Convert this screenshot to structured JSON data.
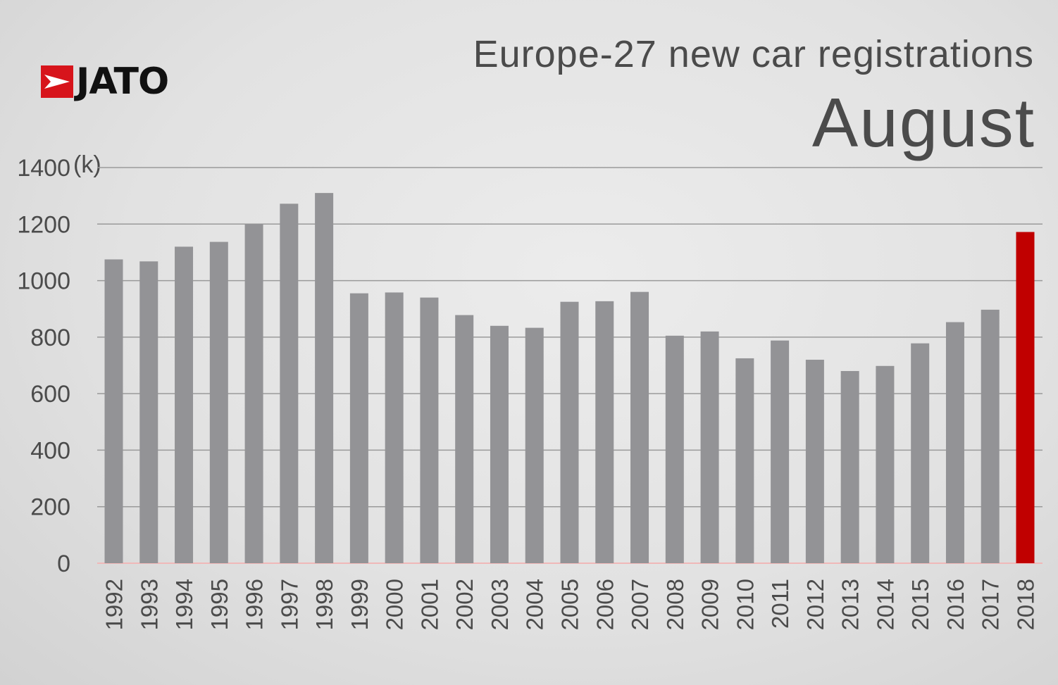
{
  "brand": {
    "logo_text": "JATO",
    "colors": {
      "mark": "#d7141b",
      "text": "#111111"
    }
  },
  "chart_data": {
    "type": "bar",
    "title": "Europe-27 new car registrations",
    "subtitle": "August",
    "ylabel": "(k)",
    "xlabel": "",
    "ylim": [
      0,
      1400
    ],
    "yticks": [
      "0",
      "200",
      "400",
      "600",
      "800",
      "1000",
      "1200",
      "1400"
    ],
    "grid": true,
    "categories": [
      "1992",
      "1993",
      "1994",
      "1995",
      "1996",
      "1997",
      "1998",
      "1999",
      "2000",
      "2001",
      "2002",
      "2003",
      "2004",
      "2005",
      "2006",
      "2007",
      "2008",
      "2009",
      "2010",
      "2011",
      "2012",
      "2013",
      "2014",
      "2015",
      "2016",
      "2017",
      "2018"
    ],
    "values": [
      1075,
      1068,
      1120,
      1137,
      1200,
      1272,
      1310,
      955,
      958,
      940,
      878,
      840,
      833,
      925,
      927,
      960,
      805,
      820,
      725,
      788,
      720,
      680,
      698,
      778,
      853,
      897,
      1172
    ],
    "colors": {
      "bar": "#939396",
      "highlight": "#c00000",
      "grid": "#9a9a9a",
      "baseline": "#f0b8b8"
    },
    "highlight_category": "2018"
  }
}
